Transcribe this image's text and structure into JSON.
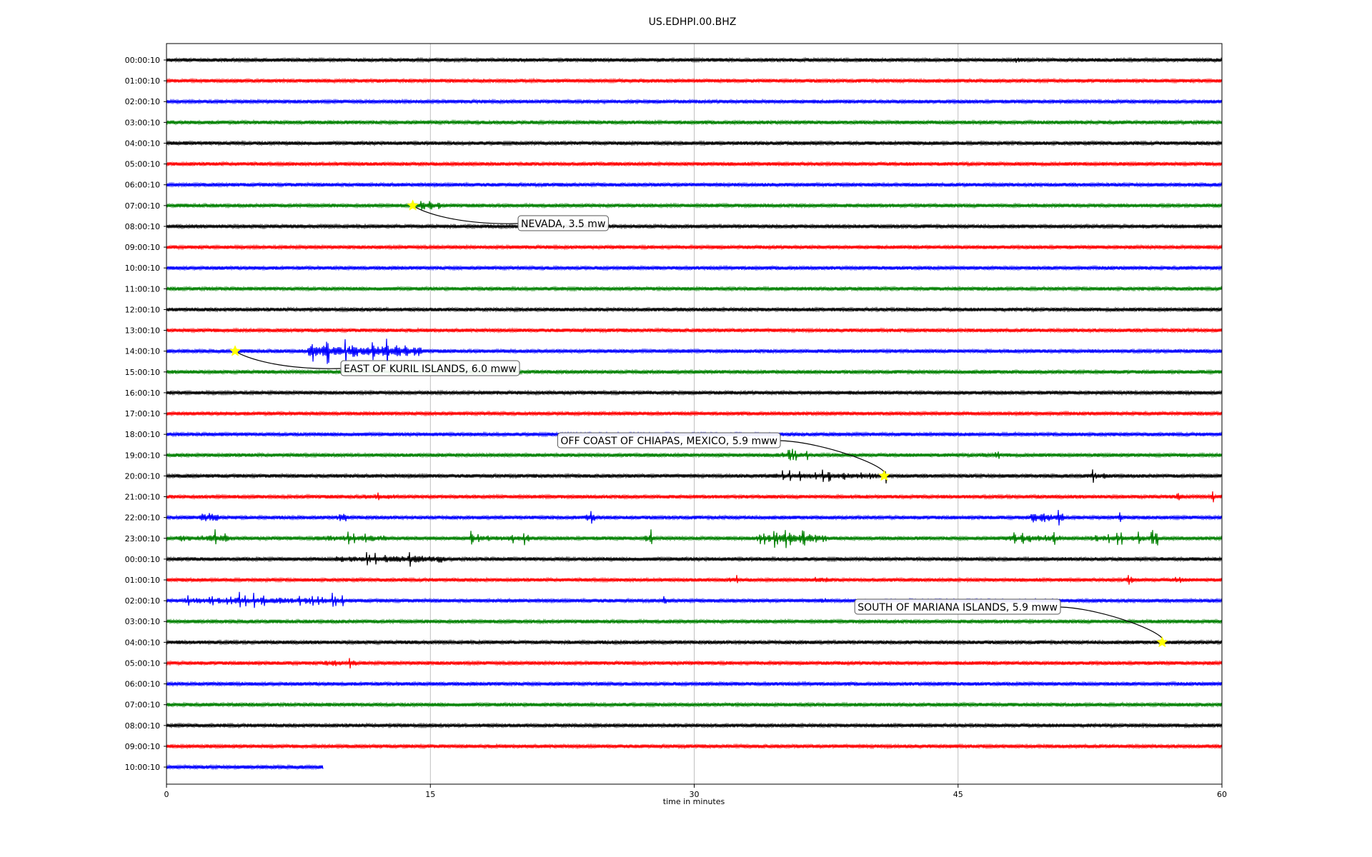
{
  "chart_data": {
    "type": "line",
    "title": "US.EDHPI.00.BHZ",
    "xlabel": "time in minutes",
    "ylabel": "",
    "xlim": [
      0,
      60
    ],
    "xticks": [
      "0",
      "15",
      "30",
      "45",
      "60"
    ],
    "xtick_values": [
      0,
      15,
      30,
      45,
      60
    ],
    "grid": "vertical lines at x ticks",
    "trace_colors": [
      "#000000",
      "#ff0000",
      "#0000ff",
      "#008000"
    ],
    "rows": [
      {
        "label": "00:00:10",
        "end_minute": 60
      },
      {
        "label": "01:00:10",
        "end_minute": 60
      },
      {
        "label": "02:00:10",
        "end_minute": 60
      },
      {
        "label": "03:00:10",
        "end_minute": 60
      },
      {
        "label": "04:00:10",
        "end_minute": 60
      },
      {
        "label": "05:00:10",
        "end_minute": 60
      },
      {
        "label": "06:00:10",
        "end_minute": 60
      },
      {
        "label": "07:00:10",
        "end_minute": 60
      },
      {
        "label": "08:00:10",
        "end_minute": 60
      },
      {
        "label": "09:00:10",
        "end_minute": 60
      },
      {
        "label": "10:00:10",
        "end_minute": 60
      },
      {
        "label": "11:00:10",
        "end_minute": 60
      },
      {
        "label": "12:00:10",
        "end_minute": 60
      },
      {
        "label": "13:00:10",
        "end_minute": 60
      },
      {
        "label": "14:00:10",
        "end_minute": 60
      },
      {
        "label": "15:00:10",
        "end_minute": 60
      },
      {
        "label": "16:00:10",
        "end_minute": 60
      },
      {
        "label": "17:00:10",
        "end_minute": 60
      },
      {
        "label": "18:00:10",
        "end_minute": 60
      },
      {
        "label": "19:00:10",
        "end_minute": 60
      },
      {
        "label": "20:00:10",
        "end_minute": 60
      },
      {
        "label": "21:00:10",
        "end_minute": 60
      },
      {
        "label": "22:00:10",
        "end_minute": 60
      },
      {
        "label": "23:00:10",
        "end_minute": 60
      },
      {
        "label": "00:00:10",
        "end_minute": 60
      },
      {
        "label": "01:00:10",
        "end_minute": 60
      },
      {
        "label": "02:00:10",
        "end_minute": 60
      },
      {
        "label": "03:00:10",
        "end_minute": 60
      },
      {
        "label": "04:00:10",
        "end_minute": 60
      },
      {
        "label": "05:00:10",
        "end_minute": 60
      },
      {
        "label": "06:00:10",
        "end_minute": 60
      },
      {
        "label": "07:00:10",
        "end_minute": 60
      },
      {
        "label": "08:00:10",
        "end_minute": 60
      },
      {
        "label": "09:00:10",
        "end_minute": 60
      },
      {
        "label": "10:00:10",
        "end_minute": 8.9
      }
    ],
    "bursts": [
      {
        "row": 0,
        "start": 23.0,
        "end": 24.5,
        "amp": 0.35
      },
      {
        "row": 0,
        "start": 47.5,
        "end": 48.5,
        "amp": 0.3
      },
      {
        "row": 7,
        "start": 14.4,
        "end": 15.6,
        "amp": 1.1
      },
      {
        "row": 14,
        "start": 8.0,
        "end": 14.5,
        "amp": 1.4
      },
      {
        "row": 19,
        "start": 34.5,
        "end": 36.5,
        "amp": 0.6
      },
      {
        "row": 19,
        "start": 46.0,
        "end": 47.5,
        "amp": 0.55
      },
      {
        "row": 20,
        "start": 34.0,
        "end": 41.0,
        "amp": 0.6
      },
      {
        "row": 20,
        "start": 52.5,
        "end": 53.3,
        "amp": 0.6
      },
      {
        "row": 21,
        "start": 11.0,
        "end": 13.0,
        "amp": 0.6
      },
      {
        "row": 21,
        "start": 57.4,
        "end": 57.8,
        "amp": 0.9
      },
      {
        "row": 21,
        "start": 59.3,
        "end": 59.5,
        "amp": 0.9
      },
      {
        "row": 22,
        "start": 1.8,
        "end": 3.0,
        "amp": 1.0
      },
      {
        "row": 22,
        "start": 9.6,
        "end": 10.2,
        "amp": 1.0
      },
      {
        "row": 22,
        "start": 23.8,
        "end": 24.3,
        "amp": 1.0
      },
      {
        "row": 22,
        "start": 49.0,
        "end": 51.0,
        "amp": 1.2
      },
      {
        "row": 22,
        "start": 53.8,
        "end": 54.3,
        "amp": 0.7
      },
      {
        "row": 23,
        "start": 0.5,
        "end": 4.0,
        "amp": 0.8
      },
      {
        "row": 23,
        "start": 8.5,
        "end": 12.5,
        "amp": 0.7
      },
      {
        "row": 23,
        "start": 17.0,
        "end": 21.0,
        "amp": 0.6
      },
      {
        "row": 23,
        "start": 27.2,
        "end": 27.6,
        "amp": 0.9
      },
      {
        "row": 23,
        "start": 33.5,
        "end": 37.5,
        "amp": 1.0
      },
      {
        "row": 23,
        "start": 47.5,
        "end": 51.0,
        "amp": 0.9
      },
      {
        "row": 23,
        "start": 52.5,
        "end": 56.5,
        "amp": 0.7
      },
      {
        "row": 24,
        "start": 9.5,
        "end": 16.0,
        "amp": 0.8
      },
      {
        "row": 25,
        "start": 32.0,
        "end": 32.5,
        "amp": 0.8
      },
      {
        "row": 25,
        "start": 36.8,
        "end": 37.6,
        "amp": 0.8
      },
      {
        "row": 25,
        "start": 45.5,
        "end": 46.0,
        "amp": 0.4
      },
      {
        "row": 25,
        "start": 54.5,
        "end": 55.0,
        "amp": 0.8
      },
      {
        "row": 25,
        "start": 57.3,
        "end": 57.7,
        "amp": 0.8
      },
      {
        "row": 26,
        "start": 1.0,
        "end": 10.0,
        "amp": 0.7
      },
      {
        "row": 26,
        "start": 25.5,
        "end": 26.0,
        "amp": 0.4
      },
      {
        "row": 26,
        "start": 28.0,
        "end": 28.5,
        "amp": 0.4
      },
      {
        "row": 26,
        "start": 37.2,
        "end": 37.5,
        "amp": 0.9
      },
      {
        "row": 29,
        "start": 9.0,
        "end": 11.0,
        "amp": 0.8
      }
    ],
    "annotations": [
      {
        "text": "NEVADA, 3.5 mw",
        "row": 7,
        "x": 14.0
      },
      {
        "text": "EAST OF KURIL ISLANDS, 6.0 mww",
        "row": 14,
        "x": 3.9
      },
      {
        "text": "OFF COAST OF CHIAPAS, MEXICO, 5.9 mww",
        "row": 20,
        "x": 40.8
      },
      {
        "text": "SOUTH OF MARIANA ISLANDS, 5.9 mww",
        "row": 28,
        "x": 56.6
      }
    ],
    "marker_color": "#ffff00"
  }
}
